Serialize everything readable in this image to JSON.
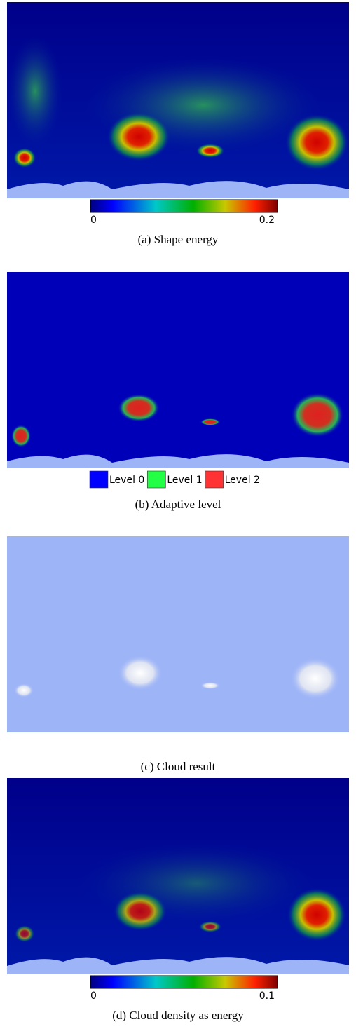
{
  "panels": [
    {
      "caption": "(a) Shape energy",
      "colorbar": {
        "range": [
          0,
          0.2
        ],
        "ticks": [
          0,
          0.2
        ]
      }
    },
    {
      "caption": "(b) Adaptive level",
      "legend": [
        {
          "name": "Level 0",
          "color": "#0000ff"
        },
        {
          "name": "Level 1",
          "color": "#22ff44"
        },
        {
          "name": "Level 2",
          "color": "#ff3333"
        }
      ]
    },
    {
      "caption": "(c) Cloud result"
    },
    {
      "caption": "(d) Cloud density as energy",
      "colorbar": {
        "range": [
          0,
          0.1
        ],
        "ticks": [
          0,
          0.1
        ]
      }
    }
  ]
}
